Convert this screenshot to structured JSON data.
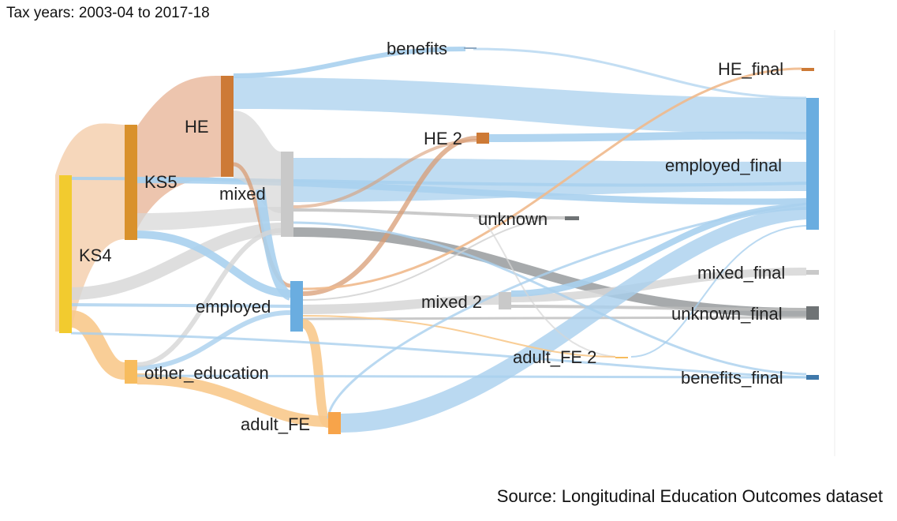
{
  "header": {
    "text": "Tax years: 2003-04 to 2017-18"
  },
  "footer": {
    "text": "Source: Longitudinal Education Outcomes dataset"
  },
  "colors": {
    "ks4": "#f2cb2f",
    "ks5": "#d9912c",
    "he": "#cd7a36",
    "employed": "#6aade0",
    "mixed": "#c9c9c9",
    "unknown": "#6f7375",
    "other_education": "#f7bc5e",
    "adult_fe": "#f7a44a",
    "benefits": "#3f78aa",
    "link_blue": "#a9d0ee",
    "link_peach": "#f3c9a4",
    "link_grey": "#d6d6d6",
    "link_orange": "#f8c98c"
  },
  "nodes": [
    {
      "id": "KS4",
      "label": "KS4"
    },
    {
      "id": "KS5",
      "label": "KS5"
    },
    {
      "id": "HE",
      "label": "HE"
    },
    {
      "id": "mixed",
      "label": "mixed"
    },
    {
      "id": "employed",
      "label": "employed"
    },
    {
      "id": "other_education",
      "label": "other_education"
    },
    {
      "id": "adult_FE",
      "label": "adult_FE"
    },
    {
      "id": "benefits",
      "label": "benefits"
    },
    {
      "id": "HE_2",
      "label": "HE 2"
    },
    {
      "id": "unknown",
      "label": "unknown"
    },
    {
      "id": "mixed_2",
      "label": "mixed 2"
    },
    {
      "id": "adult_FE_2",
      "label": "adult_FE 2"
    },
    {
      "id": "HE_final",
      "label": "HE_final"
    },
    {
      "id": "employed_final",
      "label": "employed_final"
    },
    {
      "id": "mixed_final",
      "label": "mixed_final"
    },
    {
      "id": "unknown_final",
      "label": "unknown_final"
    },
    {
      "id": "benefits_final",
      "label": "benefits_final"
    }
  ]
}
